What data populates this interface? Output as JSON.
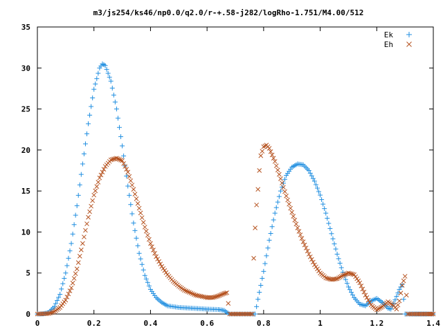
{
  "chart_data": {
    "type": "scatter",
    "title": "m3/js254/ks46/np0.0/q2.0/r-+.58-j282/logRho-1.751/M4.00/512",
    "xlabel": "",
    "ylabel": "",
    "xlim": [
      0,
      1.4
    ],
    "ylim": [
      0,
      35
    ],
    "x_ticks": [
      0,
      0.2,
      0.4,
      0.6,
      0.8,
      1,
      1.2,
      1.4
    ],
    "x_tick_labels": [
      "0",
      "0.2",
      "0.4",
      "0.6",
      "0.8",
      "1",
      "1.2",
      "1.4"
    ],
    "y_ticks": [
      0,
      5,
      10,
      15,
      20,
      25,
      30,
      35
    ],
    "y_tick_labels": [
      "0",
      "5",
      "10",
      "15",
      "20",
      "25",
      "30",
      "35"
    ],
    "grid": false,
    "legend_position": "top-right",
    "series": [
      {
        "name": "Ek",
        "marker": "plus",
        "color": "#1f8ee0",
        "points": [
          [
            0.0,
            0.0
          ],
          [
            0.02,
            0.02
          ],
          [
            0.04,
            0.2
          ],
          [
            0.06,
            0.9
          ],
          [
            0.08,
            2.4
          ],
          [
            0.1,
            5.0
          ],
          [
            0.12,
            8.6
          ],
          [
            0.14,
            13.2
          ],
          [
            0.16,
            18.3
          ],
          [
            0.18,
            23.2
          ],
          [
            0.2,
            27.4
          ],
          [
            0.22,
            30.0
          ],
          [
            0.23,
            30.5
          ],
          [
            0.24,
            30.3
          ],
          [
            0.26,
            28.4
          ],
          [
            0.28,
            25.0
          ],
          [
            0.3,
            20.5
          ],
          [
            0.32,
            15.6
          ],
          [
            0.34,
            11.1
          ],
          [
            0.36,
            7.4
          ],
          [
            0.38,
            4.7
          ],
          [
            0.4,
            3.0
          ],
          [
            0.42,
            2.0
          ],
          [
            0.44,
            1.4
          ],
          [
            0.46,
            1.0
          ],
          [
            0.5,
            0.8
          ],
          [
            0.55,
            0.7
          ],
          [
            0.6,
            0.6
          ],
          [
            0.64,
            0.55
          ],
          [
            0.66,
            0.45
          ],
          [
            0.67,
            0.2
          ],
          [
            0.68,
            0.0
          ],
          [
            0.72,
            0.0
          ],
          [
            0.76,
            0.0
          ],
          [
            0.77,
            0.0
          ],
          [
            0.78,
            1.8
          ],
          [
            0.8,
            5.2
          ],
          [
            0.82,
            9.0
          ],
          [
            0.84,
            12.3
          ],
          [
            0.86,
            15.0
          ],
          [
            0.88,
            16.9
          ],
          [
            0.9,
            17.9
          ],
          [
            0.92,
            18.3
          ],
          [
            0.94,
            18.2
          ],
          [
            0.96,
            17.5
          ],
          [
            0.98,
            16.2
          ],
          [
            1.0,
            14.5
          ],
          [
            1.02,
            12.3
          ],
          [
            1.04,
            9.8
          ],
          [
            1.06,
            7.3
          ],
          [
            1.08,
            5.1
          ],
          [
            1.1,
            3.3
          ],
          [
            1.12,
            2.0
          ],
          [
            1.14,
            1.2
          ],
          [
            1.16,
            1.0
          ],
          [
            1.18,
            1.6
          ],
          [
            1.2,
            1.9
          ],
          [
            1.22,
            1.4
          ],
          [
            1.24,
            0.7
          ],
          [
            1.25,
            0.6
          ],
          [
            1.26,
            1.3
          ],
          [
            1.28,
            3.0
          ],
          [
            1.29,
            3.6
          ],
          [
            1.3,
            0.0
          ],
          [
            1.32,
            0.0
          ],
          [
            1.36,
            0.0
          ],
          [
            1.4,
            0.0
          ]
        ]
      },
      {
        "name": "Eh",
        "marker": "cross",
        "color": "#b5521f",
        "points": [
          [
            0.0,
            0.0
          ],
          [
            0.04,
            0.05
          ],
          [
            0.06,
            0.3
          ],
          [
            0.08,
            0.8
          ],
          [
            0.1,
            1.7
          ],
          [
            0.12,
            3.2
          ],
          [
            0.14,
            5.5
          ],
          [
            0.16,
            8.6
          ],
          [
            0.18,
            11.8
          ],
          [
            0.2,
            14.5
          ],
          [
            0.22,
            16.6
          ],
          [
            0.24,
            18.0
          ],
          [
            0.26,
            18.8
          ],
          [
            0.28,
            19.0
          ],
          [
            0.3,
            18.7
          ],
          [
            0.32,
            17.3
          ],
          [
            0.34,
            15.2
          ],
          [
            0.36,
            12.9
          ],
          [
            0.38,
            10.6
          ],
          [
            0.4,
            8.6
          ],
          [
            0.42,
            7.0
          ],
          [
            0.44,
            5.8
          ],
          [
            0.46,
            4.8
          ],
          [
            0.48,
            4.0
          ],
          [
            0.5,
            3.4
          ],
          [
            0.52,
            2.9
          ],
          [
            0.56,
            2.3
          ],
          [
            0.6,
            2.0
          ],
          [
            0.62,
            2.0
          ],
          [
            0.64,
            2.2
          ],
          [
            0.66,
            2.5
          ],
          [
            0.67,
            2.6
          ],
          [
            0.68,
            0.0
          ],
          [
            0.72,
            0.0
          ],
          [
            0.76,
            0.0
          ],
          [
            0.765,
            6.8
          ],
          [
            0.77,
            10.5
          ],
          [
            0.775,
            13.3
          ],
          [
            0.78,
            15.2
          ],
          [
            0.785,
            17.5
          ],
          [
            0.79,
            19.3
          ],
          [
            0.8,
            20.4
          ],
          [
            0.81,
            20.6
          ],
          [
            0.82,
            20.2
          ],
          [
            0.84,
            18.6
          ],
          [
            0.86,
            16.5
          ],
          [
            0.88,
            14.4
          ],
          [
            0.9,
            12.4
          ],
          [
            0.92,
            10.5
          ],
          [
            0.94,
            8.8
          ],
          [
            0.96,
            7.3
          ],
          [
            0.98,
            6.0
          ],
          [
            1.0,
            5.0
          ],
          [
            1.02,
            4.4
          ],
          [
            1.04,
            4.2
          ],
          [
            1.06,
            4.3
          ],
          [
            1.08,
            4.7
          ],
          [
            1.1,
            5.0
          ],
          [
            1.12,
            4.8
          ],
          [
            1.14,
            3.8
          ],
          [
            1.16,
            2.3
          ],
          [
            1.18,
            1.1
          ],
          [
            1.2,
            0.5
          ],
          [
            1.22,
            0.9
          ],
          [
            1.24,
            1.5
          ],
          [
            1.26,
            1.0
          ],
          [
            1.27,
            0.6
          ],
          [
            1.28,
            1.6
          ],
          [
            1.29,
            3.5
          ],
          [
            1.3,
            4.6
          ],
          [
            1.31,
            0.0
          ],
          [
            1.34,
            0.0
          ],
          [
            1.38,
            0.0
          ],
          [
            1.4,
            0.0
          ]
        ]
      }
    ]
  }
}
